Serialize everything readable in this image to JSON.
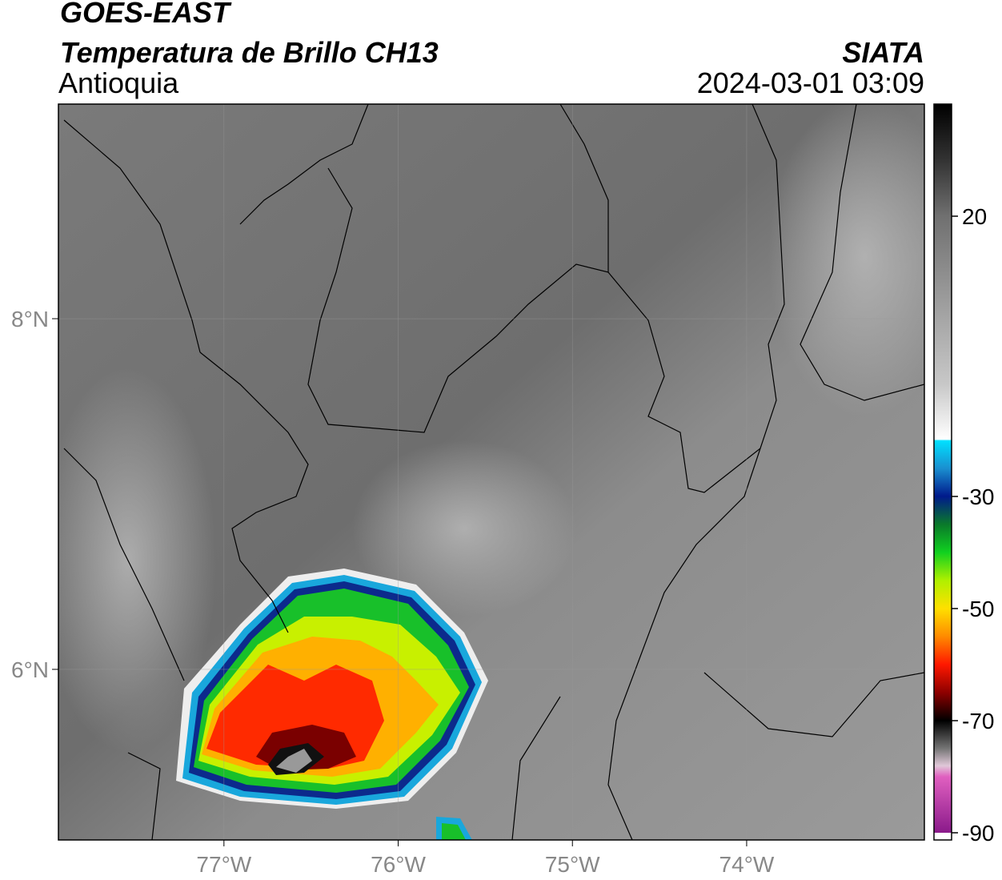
{
  "header": {
    "title": "GOES-EAST",
    "subtitle": "Temperatura de Brillo CH13",
    "region": "Antioquia",
    "source": "SIATA",
    "datetime": "2024-03-01 03:09"
  },
  "map": {
    "xlim": [
      -77.95,
      -72.98
    ],
    "ylim": [
      5.027,
      9.224
    ],
    "xticks": [
      {
        "value": -77,
        "label": "77°W"
      },
      {
        "value": -76,
        "label": "76°W"
      },
      {
        "value": -75,
        "label": "75°W"
      },
      {
        "value": -74,
        "label": "74°W"
      }
    ],
    "yticks": [
      {
        "value": 8,
        "label": "8°N"
      },
      {
        "value": 6,
        "label": "6°N"
      }
    ]
  },
  "colorbar": {
    "lim": [
      -90,
      40
    ],
    "ticks": [
      20,
      -30,
      -50,
      -70,
      -90
    ]
  }
}
